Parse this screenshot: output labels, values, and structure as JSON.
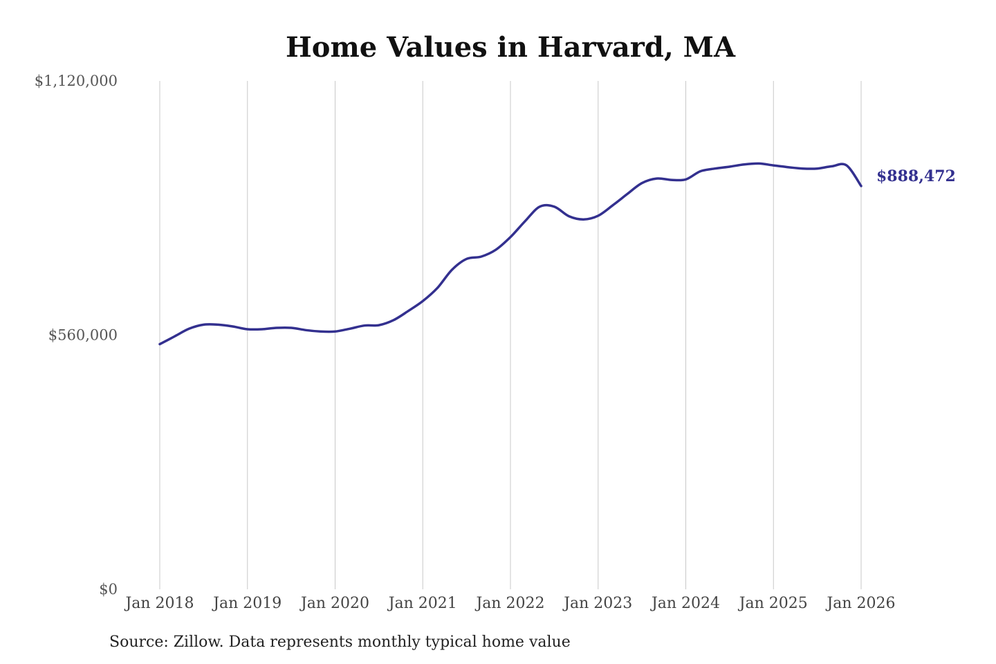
{
  "chart_data": {
    "type": "line",
    "title": "Home Values in Harvard, MA",
    "xlabel": "",
    "ylabel": "",
    "y_ticks": [
      "$0",
      "$560,000",
      "$1,120,000"
    ],
    "y_tick_values": [
      0,
      560000,
      1120000
    ],
    "ylim": [
      0,
      1120000
    ],
    "x_ticks": [
      "Jan 2018",
      "Jan 2019",
      "Jan 2020",
      "Jan 2021",
      "Jan 2022",
      "Jan 2023",
      "Jan 2024",
      "Jan 2025",
      "Jan 2026"
    ],
    "x_tick_values": [
      "2018-01",
      "2019-01",
      "2020-01",
      "2021-01",
      "2022-01",
      "2023-01",
      "2024-01",
      "2025-01",
      "2026-01"
    ],
    "xlim": [
      "2018-01",
      "2026-01"
    ],
    "grid": "vertical",
    "end_label": "$888,472",
    "line_color": "#33308f",
    "series": [
      {
        "x": [
          "2018-01",
          "2018-03",
          "2018-05",
          "2018-07",
          "2018-09",
          "2018-11",
          "2019-01",
          "2019-03",
          "2019-05",
          "2019-07",
          "2019-09",
          "2019-11",
          "2020-01",
          "2020-03",
          "2020-05",
          "2020-07",
          "2020-09",
          "2020-11",
          "2021-01",
          "2021-03",
          "2021-05",
          "2021-07",
          "2021-09",
          "2021-11",
          "2022-01",
          "2022-03",
          "2022-05",
          "2022-07",
          "2022-09",
          "2022-11",
          "2023-01",
          "2023-03",
          "2023-05",
          "2023-07",
          "2023-09",
          "2023-11",
          "2024-01",
          "2024-03",
          "2024-05",
          "2024-07",
          "2024-09",
          "2024-11",
          "2025-01",
          "2025-03",
          "2025-05",
          "2025-07",
          "2025-09",
          "2025-11",
          "2026-01"
        ],
        "values": [
          540000,
          557000,
          574000,
          583000,
          583000,
          579000,
          573000,
          573000,
          576000,
          576000,
          571000,
          568000,
          568000,
          574000,
          581000,
          582000,
          593000,
          613000,
          635000,
          664000,
          704000,
          728000,
          733000,
          748000,
          776000,
          811000,
          843000,
          843000,
          822000,
          815000,
          823000,
          846000,
          871000,
          895000,
          905000,
          902000,
          903000,
          921000,
          927000,
          931000,
          936000,
          938000,
          934000,
          930000,
          927000,
          927000,
          932000,
          934000,
          888472
        ]
      }
    ]
  },
  "source": "Source: Zillow. Data represents monthly typical home value"
}
